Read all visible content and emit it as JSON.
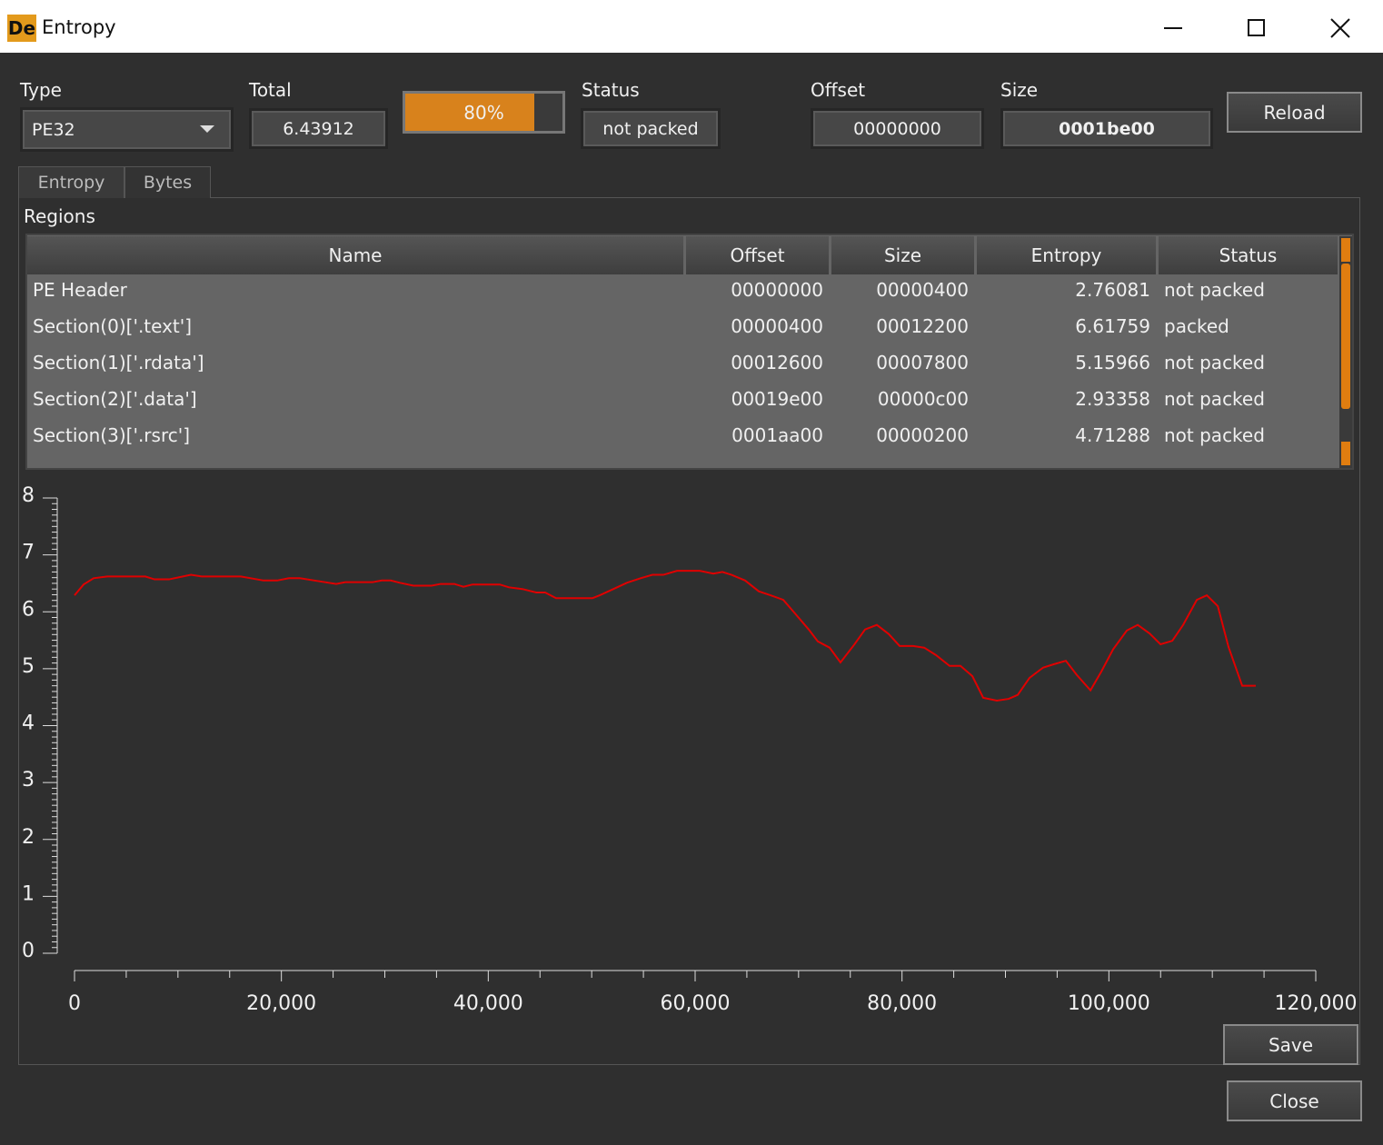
{
  "window": {
    "icon": "De",
    "title": "Entropy"
  },
  "form": {
    "type_label": "Type",
    "type_value": "PE32",
    "total_label": "Total",
    "total_value": "6.43912",
    "progress": {
      "value": 80,
      "label": "80%"
    },
    "status_label": "Status",
    "status_value": "not packed",
    "offset_label": "Offset",
    "offset_value": "00000000",
    "size_label": "Size",
    "size_value": "0001be00"
  },
  "buttons": {
    "reload": "Reload",
    "save": "Save",
    "close": "Close"
  },
  "tabs": [
    "Entropy",
    "Bytes"
  ],
  "regions_label": "Regions",
  "table": {
    "columns": [
      "Name",
      "Offset",
      "Size",
      "Entropy",
      "Status"
    ],
    "rows": [
      [
        "PE Header",
        "00000000",
        "00000400",
        "2.76081",
        "not packed"
      ],
      [
        "Section(0)['.text']",
        "00000400",
        "00012200",
        "6.61759",
        "packed"
      ],
      [
        "Section(1)['.rdata']",
        "00012600",
        "00007800",
        "5.15966",
        "not packed"
      ],
      [
        "Section(2)['.data']",
        "00019e00",
        "00000c00",
        "2.93358",
        "not packed"
      ],
      [
        "Section(3)['.rsrc']",
        "0001aa00",
        "00000200",
        "4.71288",
        "not packed"
      ]
    ]
  },
  "chart_data": {
    "type": "line",
    "color": "#e00000",
    "x": [
      0,
      880,
      1850,
      3160,
      6850,
      7730,
      9140,
      11250,
      12300,
      16080,
      18270,
      19590,
      20730,
      21790,
      23540,
      25300,
      26180,
      28800,
      29700,
      30570,
      31450,
      32770,
      34520,
      35400,
      36720,
      37600,
      38480,
      41110,
      42000,
      43300,
      44630,
      45500,
      46560,
      50080,
      50780,
      52100,
      53400,
      54730,
      55870,
      56930,
      58250,
      60440,
      61760,
      62640,
      63520,
      64830,
      66150,
      67290,
      68520,
      69660,
      70980,
      71860,
      73000,
      74050,
      75370,
      76430,
      77570,
      78710,
      79770,
      81080,
      82140,
      83280,
      84600,
      85650,
      86800,
      87850,
      89170,
      90310,
      91190,
      92330,
      93650,
      94700,
      95840,
      96900,
      98220,
      99270,
      100410,
      101730,
      102790,
      103930,
      104990,
      106130,
      107180,
      108500,
      109470,
      110530,
      111570,
      112890,
      114200
    ],
    "values": [
      6.29,
      6.48,
      6.59,
      6.62,
      6.62,
      6.57,
      6.57,
      6.65,
      6.62,
      6.62,
      6.55,
      6.55,
      6.59,
      6.59,
      6.54,
      6.49,
      6.52,
      6.52,
      6.55,
      6.55,
      6.51,
      6.46,
      6.46,
      6.49,
      6.49,
      6.44,
      6.48,
      6.48,
      6.43,
      6.4,
      6.34,
      6.34,
      6.24,
      6.24,
      6.29,
      6.4,
      6.51,
      6.59,
      6.65,
      6.65,
      6.72,
      6.72,
      6.67,
      6.7,
      6.65,
      6.55,
      6.36,
      6.29,
      6.21,
      5.97,
      5.69,
      5.48,
      5.37,
      5.11,
      5.42,
      5.69,
      5.77,
      5.61,
      5.4,
      5.4,
      5.37,
      5.24,
      5.05,
      5.05,
      4.87,
      4.49,
      4.44,
      4.47,
      4.54,
      4.84,
      5.02,
      5.08,
      5.14,
      4.89,
      4.62,
      4.95,
      5.34,
      5.67,
      5.77,
      5.62,
      5.43,
      5.49,
      5.77,
      6.21,
      6.29,
      6.1,
      5.38,
      4.7,
      4.7
    ],
    "xlim": [
      0,
      120000
    ],
    "ylim": [
      0,
      8
    ],
    "xticks": [
      0,
      {
        "value": 20000,
        "label": "20,000"
      },
      {
        "value": 40000,
        "label": "40,000"
      },
      {
        "value": 60000,
        "label": "60,000"
      },
      {
        "value": 80000,
        "label": "80,000"
      },
      {
        "value": 100000,
        "label": "100,000"
      },
      {
        "value": 120000,
        "label": "120,000"
      }
    ],
    "yticks": [
      0,
      1,
      2,
      3,
      4,
      5,
      6,
      7,
      8
    ]
  }
}
